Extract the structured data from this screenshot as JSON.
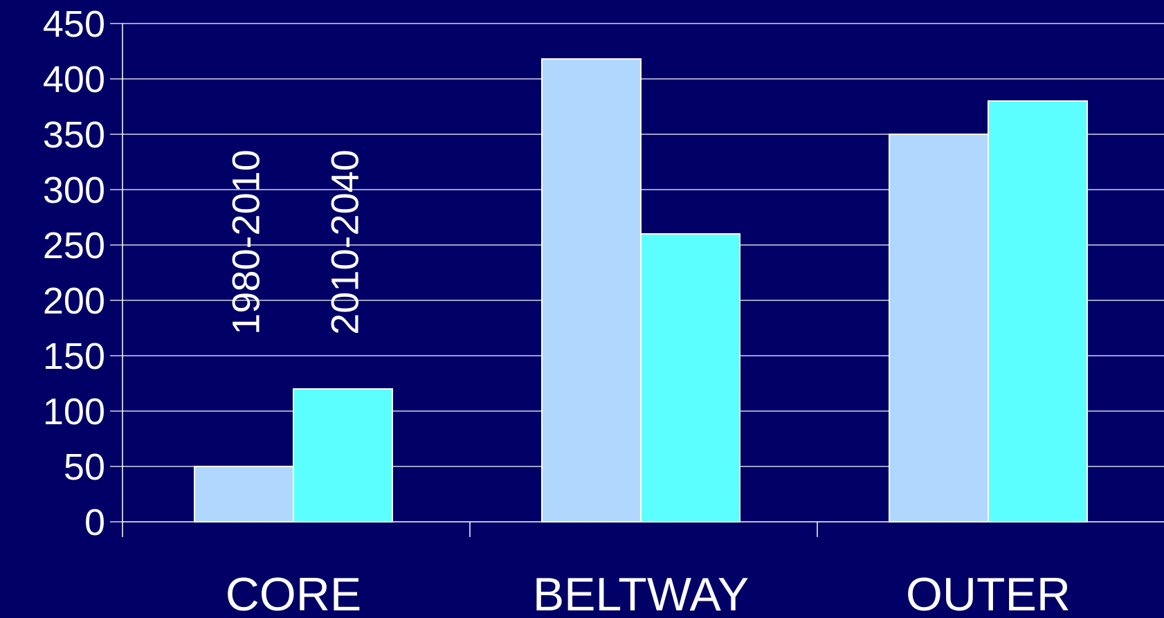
{
  "chart_data": {
    "type": "bar",
    "categories": [
      "CORE",
      "BELTWAY",
      "OUTER"
    ],
    "series": [
      {
        "name": "1980-2010",
        "values": [
          50,
          418,
          350
        ],
        "color": "#b0d8ff"
      },
      {
        "name": "2010-2040",
        "values": [
          120,
          260,
          380
        ],
        "color": "#5cffff"
      }
    ],
    "ylim": [
      0,
      450
    ],
    "yticks": [
      "0",
      "50",
      "100",
      "150",
      "200",
      "250",
      "300",
      "350",
      "400",
      "450"
    ],
    "grid": true,
    "legend": "rotated labels above first category bars",
    "background": "#000066",
    "text_color": "#ffffff",
    "grid_color": "#ffffff"
  }
}
